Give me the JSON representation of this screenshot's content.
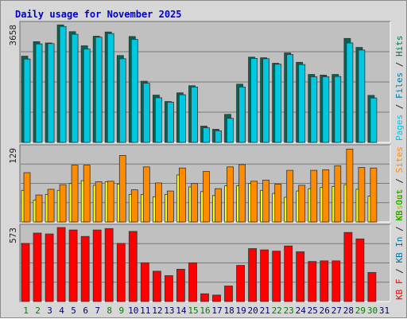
{
  "chart_data": {
    "type": "bar",
    "title": "Daily usage for November 2025",
    "colors": {
      "title": "#0000cc",
      "background": "#d7d7d7",
      "panel": "#c0c0c0",
      "hits": "#006655",
      "files": "#00c8e0",
      "pages": "#00ffff",
      "visits": "#ffff00",
      "sites": "#ff8c00",
      "kbytes": "#ff0000",
      "weekend_day": "#007f00",
      "weekday": "#00007f"
    },
    "categories": [
      "1",
      "2",
      "3",
      "4",
      "5",
      "6",
      "7",
      "8",
      "9",
      "10",
      "11",
      "12",
      "13",
      "14",
      "15",
      "16",
      "17",
      "18",
      "19",
      "20",
      "21",
      "22",
      "23",
      "24",
      "25",
      "26",
      "27",
      "28",
      "29",
      "30",
      "31"
    ],
    "weekend_days": [
      "1",
      "2",
      "8",
      "9",
      "15",
      "16",
      "22",
      "23",
      "29",
      "30"
    ],
    "panels": [
      {
        "id": "hits-files-pages",
        "ymax_label": "3658",
        "ymax": 3658,
        "label_parts": [
          {
            "text": "Pages",
            "color": "#00c8e0"
          },
          {
            "text": " / ",
            "color": "#222222"
          },
          {
            "text": "Files",
            "color": "#0077aa"
          },
          {
            "text": " / ",
            "color": "#222222"
          },
          {
            "text": "Hits",
            "color": "#007755"
          }
        ],
        "series": [
          {
            "name": "Hits",
            "color": "#006655",
            "values": [
              2680,
              3130,
              3090,
              3650,
              3440,
              3000,
              3300,
              3430,
              2700,
              3290,
              1900,
              1470,
              1270,
              1540,
              1760,
              506,
              409,
              871,
              1810,
              2650,
              2630,
              2460,
              2780,
              2490,
              2110,
              2090,
              2110,
              3230,
              2950,
              1460,
              0
            ]
          },
          {
            "name": "Files",
            "color": "#00c8e0",
            "values": [
              2590,
              3060,
              3070,
              3600,
              3360,
              2900,
              3270,
              3380,
              2600,
              3200,
              1840,
              1390,
              1250,
              1480,
              1720,
              456,
              362,
              750,
              1720,
              2610,
              2600,
              2430,
              2730,
              2420,
              2040,
              2040,
              2050,
              3090,
              2870,
              1380,
              0
            ]
          }
        ]
      },
      {
        "id": "visits-sites",
        "ymax_label": "129",
        "ymax": 129,
        "label_parts": [
          {
            "text": "Visits",
            "color": "#b8b800"
          },
          {
            "text": " / ",
            "color": "#222222"
          },
          {
            "text": "Sites",
            "color": "#ff8c00"
          }
        ],
        "series": [
          {
            "name": "Visits",
            "color": "#ffff00",
            "values": [
              55,
              38,
              48,
              55,
              67,
              72,
              64,
              70,
              66,
              48,
              48,
              44,
              48,
              82,
              61,
              53,
              46,
              63,
              63,
              67,
              55,
              50,
              43,
              54,
              58,
              60,
              62,
              65,
              57,
              45,
              0
            ]
          },
          {
            "name": "Sites",
            "color": "#ff8c00",
            "values": [
              86,
              47,
              57,
              65,
              99,
              99,
              70,
              71,
              116,
              56,
              96,
              68,
              54,
              94,
              67,
              88,
              58,
              96,
              100,
              71,
              73,
              66,
              90,
              64,
              90,
              91,
              98,
              127,
              95,
              94,
              0
            ]
          }
        ]
      },
      {
        "id": "kbytes",
        "ymax_label": "573",
        "ymax": 573,
        "label_parts": [
          {
            "text": "KB F",
            "color": "#ff0000"
          },
          {
            "text": " / ",
            "color": "#222222"
          },
          {
            "text": "KB In",
            "color": "#0077aa"
          },
          {
            "text": " / ",
            "color": "#222222"
          },
          {
            "text": "KB Out",
            "color": "#00aa00"
          }
        ],
        "series": [
          {
            "name": "KB F",
            "color": "#ff0000",
            "values": [
              450,
              530,
              523,
              573,
              554,
              504,
              554,
              565,
              450,
              543,
              300,
              235,
              200,
              250,
              300,
              60,
              50,
              120,
              280,
              410,
              400,
              390,
              430,
              385,
              310,
              315,
              315,
              535,
              485,
              225,
              0
            ]
          }
        ]
      }
    ]
  }
}
